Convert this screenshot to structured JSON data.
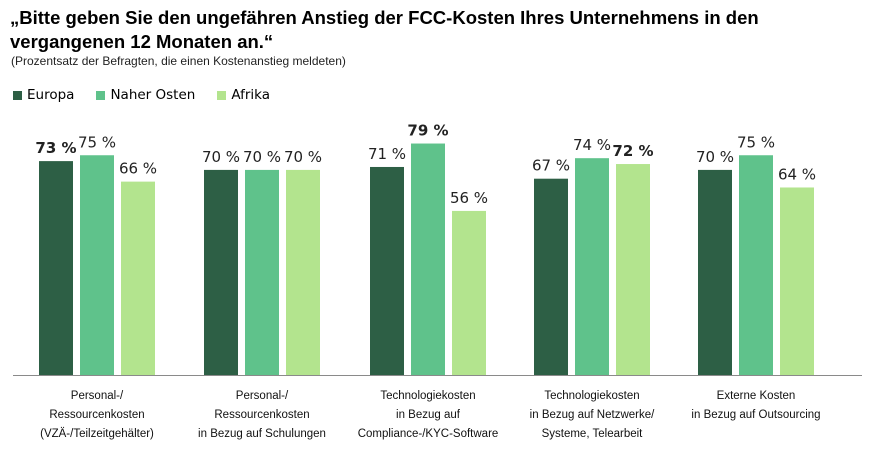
{
  "title_line1": "„Bitte geben Sie den ungefähren Anstieg der FCC-Kosten Ihres Unternehmens in den",
  "title_line2": "vergangenen 12 Monaten an.“",
  "subtitle": "(Prozentsatz der Befragten, die einen Kostenanstieg meldeten)",
  "chart_data": {
    "type": "bar",
    "title": "„Bitte geben Sie den ungefähren Anstieg der FCC-Kosten Ihres Unternehmens in den vergangenen 12 Monaten an.“",
    "subtitle": "(Prozentsatz der Befragten, die einen Kostenanstieg meldeten)",
    "categories": [
      [
        "Personal-/",
        "Ressourcenkosten",
        "(VZÄ-/Teilzeitgehälter)"
      ],
      [
        "Personal-/",
        "Ressourcenkosten",
        "in Bezug auf Schulungen"
      ],
      [
        "Technologiekosten",
        "in Bezug auf",
        "Compliance-/KYC-Software"
      ],
      [
        "Technologiekosten",
        "in Bezug auf Netzwerke/",
        "Systeme, Telearbeit"
      ],
      [
        "Externe Kosten",
        "in Bezug auf Outsourcing"
      ]
    ],
    "series": [
      {
        "name": "Europa",
        "color": "#2d5f45",
        "values": [
          73,
          70,
          71,
          67,
          70
        ]
      },
      {
        "name": "Naher Osten",
        "color": "#5fc28b",
        "values": [
          75,
          70,
          79,
          74,
          75
        ]
      },
      {
        "name": "Afrika",
        "color": "#b3e48e",
        "values": [
          66,
          70,
          56,
          72,
          64
        ]
      }
    ],
    "value_labels": [
      [
        "73 %",
        "70 %",
        "71 %",
        "67 %",
        "70 %"
      ],
      [
        "75 %",
        "70 %",
        "79 %",
        "74 %",
        "75 %"
      ],
      [
        "66 %",
        "70 %",
        "56 %",
        "72 %",
        "64 %"
      ]
    ],
    "bold_labels": [
      [
        0,
        0
      ],
      [
        1,
        2
      ],
      [
        2,
        3
      ]
    ],
    "ylim": [
      0,
      100
    ],
    "grid": false,
    "legend_position": "top-left",
    "axis_color": "#8a8a8a"
  }
}
